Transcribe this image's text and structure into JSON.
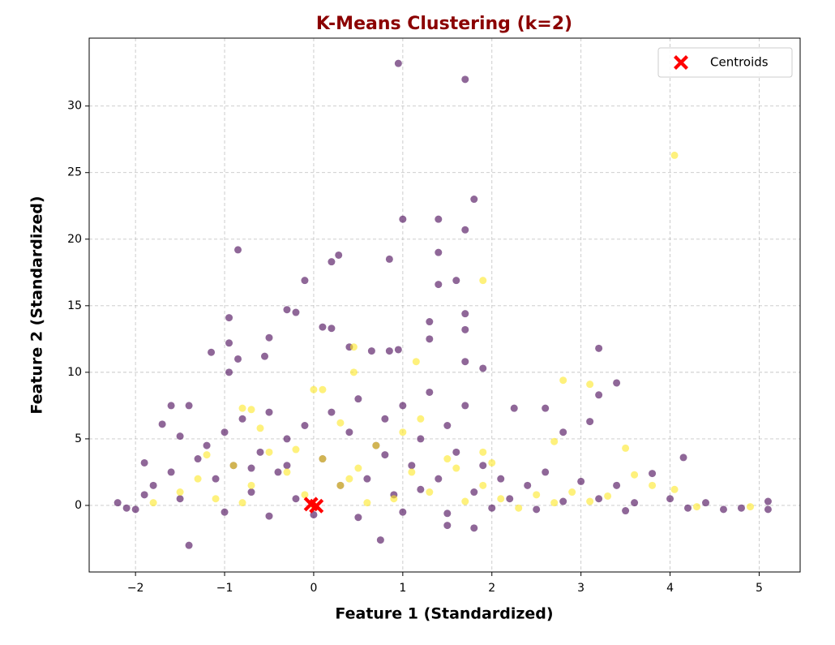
{
  "chart_data": {
    "type": "scatter",
    "title": "K-Means Clustering (k=2)",
    "x_label": "Feature 1 (Standardized)",
    "y_label": "Feature 2 (Standardized)",
    "xlim": [
      -2.52,
      5.46
    ],
    "ylim": [
      -5.0,
      35.1
    ],
    "xticks": [
      {
        "value": -2,
        "label": "−2"
      },
      {
        "value": -1,
        "label": "−1"
      },
      0,
      1,
      2,
      3,
      4,
      5
    ],
    "yticks": [
      0,
      5,
      10,
      15,
      20,
      25,
      30
    ],
    "grid": true,
    "legend": "upper right",
    "series": [
      {
        "color": "#440154",
        "alpha": 0.6,
        "marker": "o",
        "x": [
          0.95,
          1.7,
          1.8,
          1.7,
          1.0,
          1.4,
          -0.85,
          0.85,
          0.2,
          0.28,
          1.4,
          -0.1,
          1.6,
          1.4,
          -0.3,
          -0.2,
          -0.95,
          1.7,
          1.7,
          1.3,
          0.1,
          0.2,
          -0.5,
          -0.95,
          -1.15,
          0.4,
          0.85,
          0.95,
          1.3,
          3.2,
          1.7,
          1.9,
          -0.85,
          -0.55,
          0.65,
          -0.95,
          3.4,
          3.1,
          4.15,
          5.1,
          5.1,
          4.8,
          4.6,
          -1.4,
          0.75,
          1.8,
          1.5,
          2.6,
          2.8,
          2.25,
          3.2,
          -1.4,
          -1.6,
          -1.7,
          -1.9,
          -2.2,
          -2.1,
          -1.8,
          -1.6,
          -1.5,
          -1.3,
          -1.2,
          -1.1,
          -1.0,
          -0.9,
          -0.8,
          -0.7,
          -0.6,
          -0.5,
          -0.4,
          -0.3,
          -0.2,
          -0.1,
          0.1,
          0.2,
          0.3,
          0.4,
          0.5,
          0.6,
          0.7,
          0.8,
          0.9,
          1.0,
          1.1,
          1.2,
          1.3,
          1.4,
          1.5,
          1.6,
          1.7,
          1.8,
          1.9,
          2.1,
          2.2,
          2.4,
          2.6,
          2.8,
          3.0,
          3.2,
          3.4,
          3.6,
          3.8,
          4.0,
          4.2,
          4.4,
          -2.0,
          -1.9,
          -0.5,
          0.5,
          1.5,
          2.5,
          3.5,
          -1.0,
          0,
          1,
          2,
          -1.5,
          -0.3,
          0.8,
          1.2,
          -0.7
        ],
        "values": [
          33.2,
          32,
          23,
          20.7,
          21.5,
          21.5,
          19.2,
          18.5,
          18.3,
          18.8,
          19,
          16.9,
          16.9,
          16.6,
          14.7,
          14.5,
          14.1,
          14.4,
          13.2,
          13.8,
          13.4,
          13.3,
          12.6,
          12.2,
          11.5,
          11.9,
          11.6,
          11.7,
          12.5,
          11.8,
          10.8,
          10.3,
          11,
          11.2,
          11.6,
          10,
          9.2,
          6.3,
          3.6,
          0.3,
          -0.3,
          -0.2,
          -0.3,
          -3,
          -2.6,
          -1.7,
          -1.5,
          7.3,
          5.5,
          7.3,
          8.3,
          7.5,
          7.5,
          6.1,
          3.2,
          0.2,
          -0.2,
          1.5,
          2.5,
          0.5,
          3.5,
          4.5,
          2,
          5.5,
          3,
          6.5,
          1,
          4,
          7,
          2.5,
          5,
          0.5,
          6,
          3.5,
          7,
          1.5,
          5.5,
          8,
          2,
          4.5,
          6.5,
          0.8,
          7.5,
          3,
          5,
          8.5,
          2,
          6,
          4,
          7.5,
          1,
          3,
          2,
          0.5,
          1.5,
          2.5,
          0.3,
          1.8,
          0.5,
          1.5,
          0.2,
          2.4,
          0.5,
          -0.2,
          0.2,
          -0.3,
          0.8,
          -0.8,
          -0.9,
          -0.6,
          -0.3,
          -0.4,
          -0.5,
          -0.7,
          -0.5,
          -0.2,
          5.2,
          3,
          3.8,
          1.2,
          2.8
        ]
      },
      {
        "color": "#fde725",
        "alpha": 0.6,
        "marker": "o",
        "x": [
          4.05,
          1.9,
          0.45,
          1.15,
          0.45,
          2.8,
          3.1,
          3.5,
          4.05,
          4.9,
          1.9,
          2.7,
          -0.8,
          -0.7,
          0,
          0.1,
          -1.8,
          -1.5,
          -1.3,
          -1.1,
          -0.9,
          -0.7,
          -0.5,
          -0.3,
          -0.1,
          0.1,
          0.3,
          0.5,
          0.7,
          0.9,
          1.1,
          1.3,
          1.5,
          1.7,
          1.9,
          2.1,
          2.3,
          2.5,
          2.7,
          2.9,
          3.1,
          3.3,
          3.6,
          3.8,
          4.3,
          -0.6,
          0.3,
          1.0,
          -1.2,
          0.0,
          0.6,
          -0.2,
          1.6,
          2.0,
          -0.8,
          0.4,
          1.2
        ],
        "values": [
          26.3,
          16.9,
          11.9,
          10.8,
          10,
          9.4,
          9.1,
          4.3,
          1.2,
          -0.1,
          4,
          4.8,
          7.3,
          7.2,
          8.7,
          8.7,
          0.2,
          1,
          2,
          0.5,
          3,
          1.5,
          4,
          2.5,
          0.8,
          3.5,
          1.5,
          2.8,
          4.5,
          0.5,
          2.5,
          1,
          3.5,
          0.3,
          1.5,
          0.5,
          -0.2,
          0.8,
          0.2,
          1,
          0.3,
          0.7,
          2.3,
          1.5,
          -0.1,
          5.8,
          6.2,
          5.5,
          3.8,
          0,
          0.2,
          4.2,
          2.8,
          3.2,
          0.2,
          2,
          6.5
        ]
      },
      {
        "name": "Centroids",
        "color": "#ff0000",
        "alpha": 1,
        "marker": "X",
        "x": [
          -0.03,
          0.03
        ],
        "values": [
          0.1,
          -0.05
        ]
      }
    ]
  }
}
